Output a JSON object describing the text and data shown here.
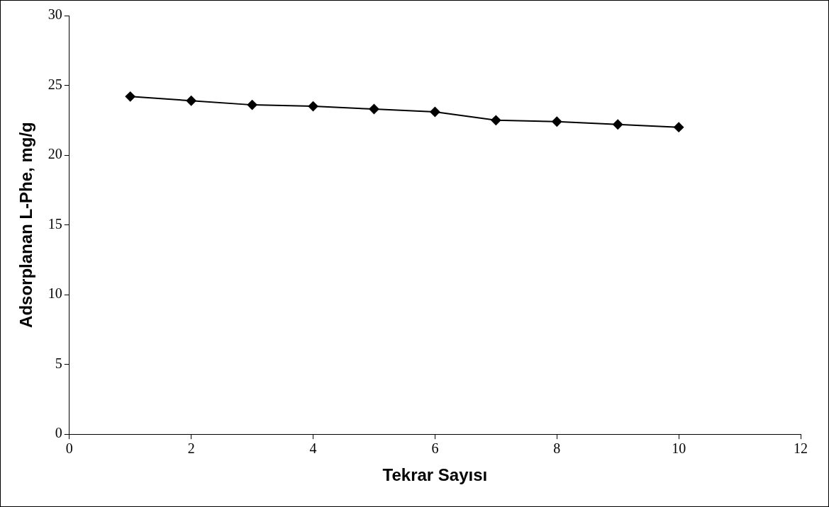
{
  "chart_data": {
    "type": "line",
    "xlabel": "Tekrar Sayısı",
    "ylabel": "Adsorplanan L-Phe, mg/g",
    "x": [
      1,
      2,
      3,
      4,
      5,
      6,
      7,
      8,
      9,
      10
    ],
    "series": [
      {
        "color": "#000000",
        "values": [
          24.2,
          23.9,
          23.6,
          23.5,
          23.3,
          23.1,
          22.5,
          22.4,
          22.2,
          22.0
        ]
      }
    ],
    "xlim": [
      0,
      12
    ],
    "xticks": [
      0,
      2,
      4,
      6,
      8,
      10,
      12
    ],
    "ylim": [
      0,
      30
    ],
    "yticks": [
      0,
      5,
      10,
      15,
      20,
      25,
      30
    ],
    "grid": false,
    "legend": false,
    "marker": "diamond",
    "line_style": "solid"
  }
}
